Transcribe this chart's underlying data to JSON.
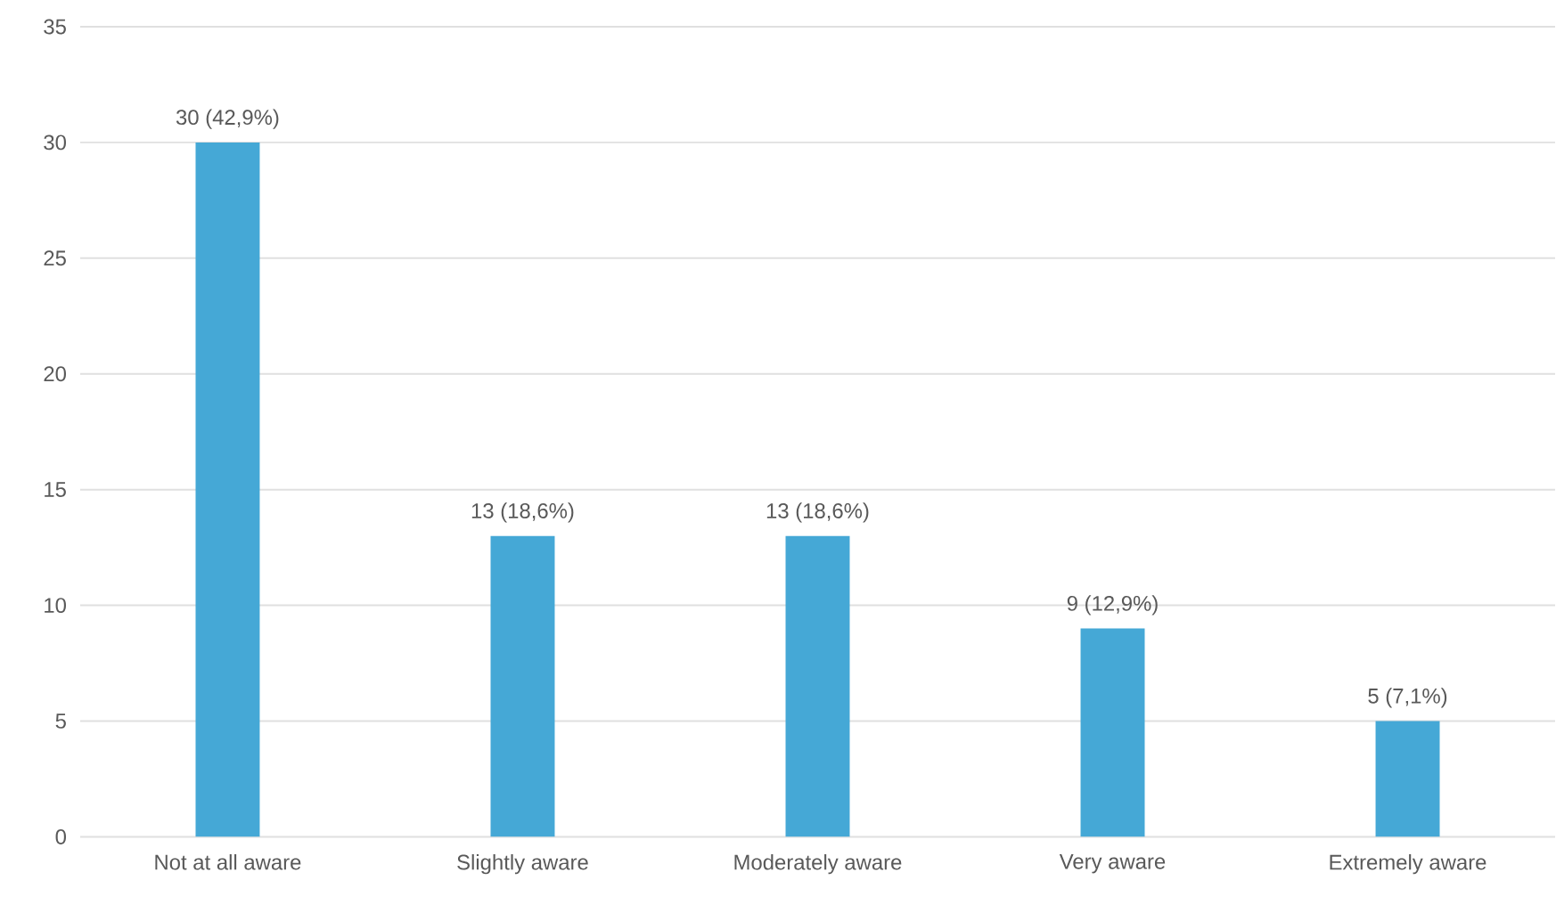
{
  "chart_data": {
    "type": "bar",
    "categories": [
      "Not at all aware",
      "Slightly aware",
      "Moderately aware",
      "Very aware",
      "Extremely aware"
    ],
    "values": [
      30,
      13,
      13,
      9,
      5
    ],
    "value_labels": [
      "30 (42,9%)",
      "13 (18,6%)",
      "13 (18,6%)",
      "9 (12,9%)",
      "5 (7,1%)"
    ],
    "color": "#45a8d6",
    "ylim": [
      0,
      35
    ],
    "yticks": [
      0,
      5,
      10,
      15,
      20,
      25,
      30,
      35
    ],
    "grid": "y"
  }
}
